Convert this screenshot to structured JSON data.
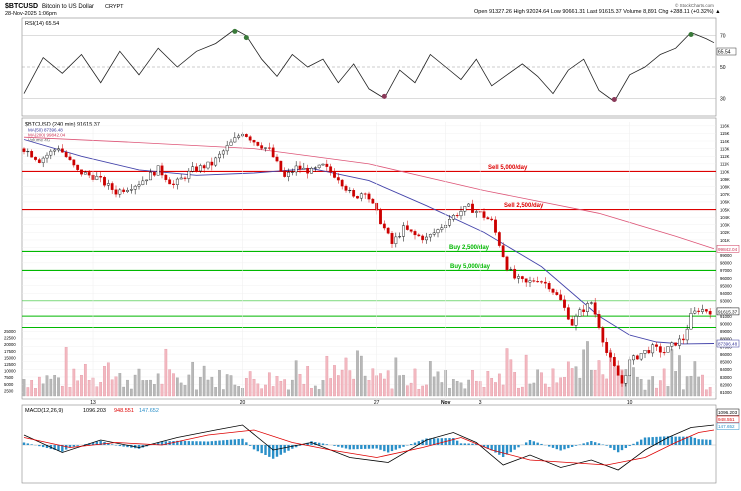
{
  "header": {
    "symbol": "$BTCUSD",
    "name": "Bitcoin to US Dollar",
    "exchange": "CRYPT",
    "date_line": "28-Nov-2025 1:06pm",
    "ohlc": "Open 91327.26   High 92024.64   Low 90661.31   Last 91615.37   Volume 8,891   Chg +288.11 (+0.32%) ▲",
    "watermark": "© StockCharts.com"
  },
  "rsi": {
    "label": "RSI(14) 65.54",
    "value_tag": "65.54",
    "ticks": [
      "70",
      "50",
      "30"
    ]
  },
  "price": {
    "label": "$BTCUSD (240 min) 91615.37",
    "legend": [
      "MA(50) 87396.48",
      "MA(200) 99842.04",
      "Volume 4G"
    ],
    "last_tag": "91615.37",
    "ma200_tag": "99842.04",
    "ma50_tag": "87396.48",
    "ticks": [
      "116K",
      "115K",
      "114K",
      "113K",
      "112K",
      "111K",
      "110K",
      "109K",
      "108K",
      "107K",
      "106K",
      "105K",
      "104K",
      "103K",
      "102K",
      "101K",
      "100K",
      "99000",
      "98000",
      "97000",
      "96000",
      "95000",
      "94000",
      "93000",
      "92000",
      "91000",
      "90000",
      "89000",
      "88000",
      "87000",
      "86000",
      "85000",
      "84000",
      "83000",
      "82000",
      "81000"
    ],
    "volume_ticks": [
      "25000",
      "22500",
      "20000",
      "17500",
      "15000",
      "12500",
      "10000",
      "7500",
      "5000",
      "2500"
    ]
  },
  "levels": [
    {
      "label": "Sell 5,000/day",
      "price": 110000,
      "color": "#dd0000"
    },
    {
      "label": "Sell 2,500/day",
      "price": 105000,
      "color": "#dd0000"
    },
    {
      "label": "Buy 2,500/day",
      "price": 99500,
      "color": "#00b800"
    },
    {
      "label": "Buy 5,000/day",
      "price": 97000,
      "color": "#00b800"
    }
  ],
  "macd": {
    "label": "MACD(12,26,9)",
    "values": [
      "1096.203",
      "948.551",
      "147.652"
    ],
    "colors": [
      "#000000",
      "#dd0000",
      "#2a8fc8"
    ]
  },
  "x_axis": [
    "13",
    "20",
    "27",
    "Nov",
    "3",
    "10",
    "17",
    "24"
  ],
  "chart_data": {
    "type": "candlestick",
    "title": "$BTCUSD Bitcoin to US Dollar CRYPT",
    "interval": "240 min",
    "x_labels": [
      "13",
      "20",
      "27",
      "Nov",
      "3",
      "10",
      "17",
      "24"
    ],
    "ylim": [
      80500,
      116500
    ],
    "rsi_ylim": [
      20,
      80
    ],
    "close_path": [
      [
        0,
        113000
      ],
      [
        4,
        111500
      ],
      [
        9,
        113200
      ],
      [
        14,
        110000
      ],
      [
        19,
        109200
      ],
      [
        24,
        107300
      ],
      [
        30,
        108500
      ],
      [
        35,
        110300
      ],
      [
        39,
        108200
      ],
      [
        44,
        110200
      ],
      [
        49,
        111000
      ],
      [
        53,
        113200
      ],
      [
        57,
        115200
      ],
      [
        60,
        114000
      ],
      [
        64,
        112800
      ],
      [
        68,
        109200
      ],
      [
        71,
        110500
      ],
      [
        75,
        110000
      ],
      [
        78,
        110700
      ],
      [
        82,
        109200
      ],
      [
        86,
        106500
      ],
      [
        89,
        107500
      ],
      [
        93,
        103500
      ],
      [
        96,
        100500
      ],
      [
        99,
        102500
      ],
      [
        102,
        101600
      ],
      [
        105,
        101200
      ],
      [
        108,
        102300
      ],
      [
        111,
        103800
      ],
      [
        114,
        104800
      ],
      [
        116,
        105300
      ],
      [
        119,
        104500
      ],
      [
        122,
        103400
      ],
      [
        124,
        100500
      ],
      [
        126,
        97500
      ],
      [
        128,
        96000
      ],
      [
        131,
        95300
      ],
      [
        134,
        95900
      ],
      [
        137,
        95000
      ],
      [
        140,
        93000
      ],
      [
        143,
        90000
      ],
      [
        145,
        91500
      ],
      [
        148,
        92800
      ],
      [
        150,
        89800
      ],
      [
        152,
        86200
      ],
      [
        154,
        84200
      ],
      [
        156,
        82200
      ],
      [
        158,
        85000
      ],
      [
        161,
        86100
      ],
      [
        164,
        86800
      ],
      [
        167,
        86300
      ],
      [
        170,
        87500
      ],
      [
        172,
        88000
      ],
      [
        174,
        91000
      ],
      [
        176,
        91900
      ],
      [
        180,
        91615
      ]
    ],
    "ma50_path": [
      [
        0,
        114200
      ],
      [
        15,
        112000
      ],
      [
        30,
        110200
      ],
      [
        45,
        109500
      ],
      [
        60,
        109800
      ],
      [
        75,
        110400
      ],
      [
        90,
        108800
      ],
      [
        105,
        105500
      ],
      [
        120,
        102000
      ],
      [
        135,
        97500
      ],
      [
        150,
        91000
      ],
      [
        158,
        88500
      ],
      [
        165,
        87600
      ],
      [
        172,
        87350
      ],
      [
        180,
        87396
      ]
    ],
    "ma200_path": [
      [
        0,
        114500
      ],
      [
        30,
        113800
      ],
      [
        60,
        113000
      ],
      [
        90,
        111000
      ],
      [
        120,
        107500
      ],
      [
        150,
        104500
      ],
      [
        170,
        101500
      ],
      [
        180,
        99842
      ]
    ],
    "rsi_path": [
      [
        0,
        33
      ],
      [
        5,
        56
      ],
      [
        10,
        46
      ],
      [
        15,
        58
      ],
      [
        20,
        40
      ],
      [
        25,
        60
      ],
      [
        30,
        45
      ],
      [
        35,
        62
      ],
      [
        40,
        50
      ],
      [
        45,
        60
      ],
      [
        50,
        65
      ],
      [
        55,
        74
      ],
      [
        58,
        70
      ],
      [
        62,
        55
      ],
      [
        66,
        44
      ],
      [
        70,
        58
      ],
      [
        74,
        50
      ],
      [
        78,
        55
      ],
      [
        82,
        40
      ],
      [
        86,
        52
      ],
      [
        90,
        36
      ],
      [
        94,
        30
      ],
      [
        98,
        48
      ],
      [
        102,
        40
      ],
      [
        106,
        58
      ],
      [
        110,
        50
      ],
      [
        114,
        42
      ],
      [
        118,
        55
      ],
      [
        122,
        38
      ],
      [
        126,
        45
      ],
      [
        130,
        52
      ],
      [
        134,
        44
      ],
      [
        138,
        33
      ],
      [
        142,
        48
      ],
      [
        146,
        55
      ],
      [
        150,
        35
      ],
      [
        154,
        28
      ],
      [
        158,
        45
      ],
      [
        162,
        50
      ],
      [
        166,
        58
      ],
      [
        170,
        62
      ],
      [
        174,
        72
      ],
      [
        178,
        68
      ],
      [
        180,
        65.54
      ]
    ],
    "macd_path": [
      [
        0,
        0.4
      ],
      [
        10,
        -0.3
      ],
      [
        20,
        0.2
      ],
      [
        30,
        -0.1
      ],
      [
        40,
        0.3
      ],
      [
        50,
        0.6
      ],
      [
        57,
        0.8
      ],
      [
        65,
        -0.2
      ],
      [
        75,
        0.1
      ],
      [
        85,
        -0.5
      ],
      [
        95,
        -0.7
      ],
      [
        105,
        0.2
      ],
      [
        112,
        0.5
      ],
      [
        118,
        0.1
      ],
      [
        125,
        -0.8
      ],
      [
        132,
        -0.4
      ],
      [
        140,
        -0.9
      ],
      [
        148,
        -0.6
      ],
      [
        155,
        -1.0
      ],
      [
        162,
        -0.2
      ],
      [
        168,
        0.3
      ],
      [
        174,
        0.7
      ],
      [
        180,
        0.8
      ]
    ],
    "signal_path": [
      [
        0,
        0.3
      ],
      [
        12,
        -0.1
      ],
      [
        24,
        0.1
      ],
      [
        36,
        0.0
      ],
      [
        48,
        0.4
      ],
      [
        60,
        0.6
      ],
      [
        70,
        0.1
      ],
      [
        80,
        -0.2
      ],
      [
        92,
        -0.5
      ],
      [
        104,
        -0.1
      ],
      [
        114,
        0.3
      ],
      [
        122,
        -0.2
      ],
      [
        132,
        -0.6
      ],
      [
        142,
        -0.7
      ],
      [
        152,
        -0.8
      ],
      [
        162,
        -0.5
      ],
      [
        170,
        0.1
      ],
      [
        176,
        0.5
      ],
      [
        180,
        0.6
      ]
    ]
  }
}
